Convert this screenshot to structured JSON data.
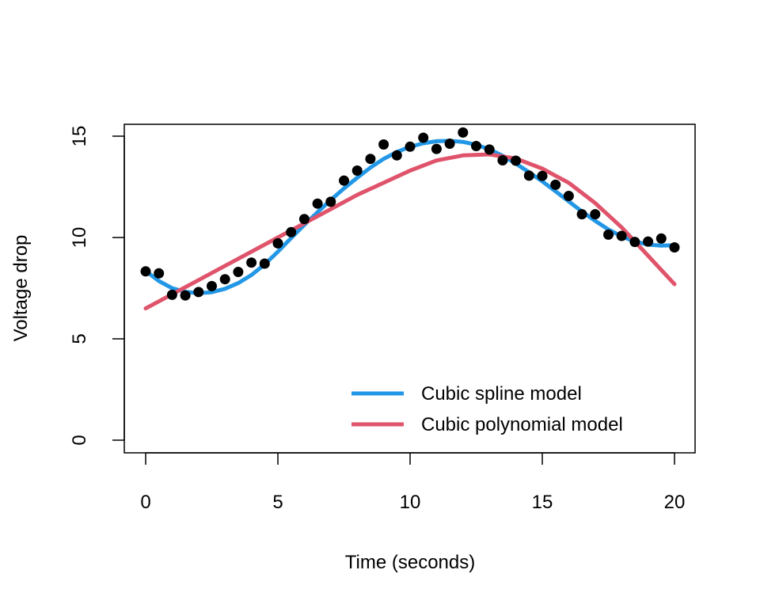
{
  "chart_data": {
    "type": "scatter",
    "xlabel": "Time (seconds)",
    "ylabel": "Voltage drop",
    "xlim": [
      0,
      20
    ],
    "ylim": [
      0,
      15
    ],
    "x_ticks": [
      0,
      5,
      10,
      15,
      20
    ],
    "y_ticks": [
      0,
      5,
      10,
      15
    ],
    "grid": false,
    "legend_position": "bottom-right",
    "points": {
      "x": [
        0,
        0.5,
        1,
        1.5,
        2,
        2.5,
        3,
        3.5,
        4,
        4.5,
        5,
        5.5,
        6,
        6.5,
        7,
        7.5,
        8,
        8.5,
        9,
        9.5,
        10,
        10.5,
        11,
        11.5,
        12,
        12.5,
        13,
        13.5,
        14,
        14.5,
        15,
        15.5,
        16,
        16.5,
        17,
        17.5,
        18,
        18.5,
        19,
        19.5,
        20
      ],
      "y": [
        8.33,
        8.23,
        7.17,
        7.14,
        7.31,
        7.6,
        7.94,
        8.3,
        8.76,
        8.71,
        9.71,
        10.26,
        10.91,
        11.67,
        11.76,
        12.81,
        13.3,
        13.88,
        14.59,
        14.05,
        14.48,
        14.92,
        14.37,
        14.63,
        15.18,
        14.51,
        14.34,
        13.81,
        13.79,
        13.05,
        13.04,
        12.6,
        12.05,
        11.15,
        11.15,
        10.14,
        10.08,
        9.78,
        9.8,
        9.95,
        9.51
      ],
      "color": "#000000"
    },
    "series": [
      {
        "name": "Cubic spline model",
        "color": "#2297E6",
        "x": [
          0,
          0.5,
          1,
          1.5,
          2,
          2.5,
          3,
          3.5,
          4,
          4.5,
          5,
          5.5,
          6,
          6.5,
          7,
          7.5,
          8,
          8.5,
          9,
          9.5,
          10,
          10.5,
          11,
          11.5,
          12,
          12.5,
          13,
          13.5,
          14,
          14.5,
          15,
          15.5,
          16,
          16.5,
          17,
          17.5,
          18,
          18.5,
          19,
          19.5,
          20
        ],
        "y": [
          8.35,
          7.85,
          7.5,
          7.32,
          7.25,
          7.3,
          7.47,
          7.75,
          8.15,
          8.67,
          9.3,
          9.97,
          10.62,
          11.25,
          11.85,
          12.42,
          12.95,
          13.45,
          13.88,
          14.22,
          14.48,
          14.65,
          14.75,
          14.77,
          14.72,
          14.58,
          14.35,
          14.03,
          13.65,
          13.22,
          12.77,
          12.28,
          11.78,
          11.28,
          10.82,
          10.4,
          10.05,
          9.8,
          9.65,
          9.6,
          9.62
        ]
      },
      {
        "name": "Cubic polynomial model",
        "color": "#DF536B",
        "x": [
          0,
          1,
          2,
          3,
          4,
          5,
          6,
          7,
          8,
          9,
          10,
          11,
          12,
          13,
          14,
          15,
          16,
          17,
          18,
          19,
          20
        ],
        "y": [
          6.5,
          7.2,
          7.9,
          8.6,
          9.3,
          10.0,
          10.7,
          11.4,
          12.1,
          12.7,
          13.3,
          13.8,
          14.05,
          14.1,
          13.9,
          13.4,
          12.7,
          11.7,
          10.5,
          9.1,
          7.7
        ]
      }
    ]
  }
}
